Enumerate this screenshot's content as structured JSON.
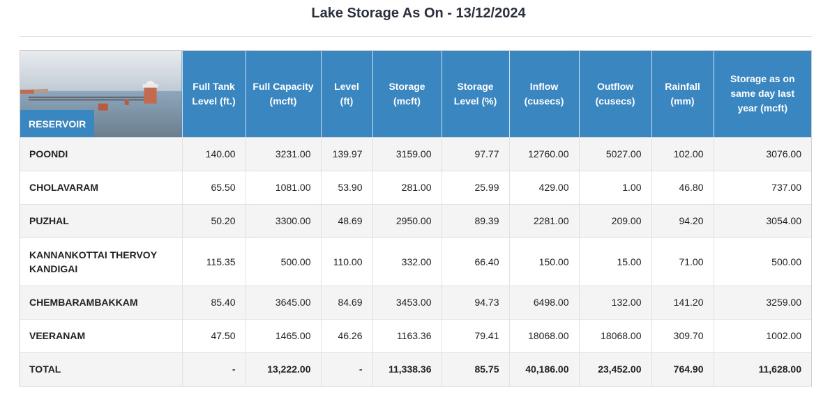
{
  "title": "Lake Storage As On - 13/12/2024",
  "columns": {
    "reservoir": "RESERVOIR",
    "full_tank_level": "Full Tank Level (ft.)",
    "full_capacity": "Full Capacity (mcft)",
    "level": "Level (ft)",
    "storage": "Storage (mcft)",
    "storage_level": "Storage Level (%)",
    "inflow": "Inflow (cusecs)",
    "outflow": "Outflow (cusecs)",
    "rainfall": "Rainfall (mm)",
    "storage_last_year": "Storage as on same day last year (mcft)"
  },
  "rows": [
    {
      "name": "POONDI",
      "ftl": "140.00",
      "capacity": "3231.00",
      "level": "139.97",
      "storage": "3159.00",
      "pct": "97.77",
      "inflow": "12760.00",
      "outflow": "5027.00",
      "rain": "102.00",
      "last": "3076.00"
    },
    {
      "name": "CHOLAVARAM",
      "ftl": "65.50",
      "capacity": "1081.00",
      "level": "53.90",
      "storage": "281.00",
      "pct": "25.99",
      "inflow": "429.00",
      "outflow": "1.00",
      "rain": "46.80",
      "last": "737.00"
    },
    {
      "name": "PUZHAL",
      "ftl": "50.20",
      "capacity": "3300.00",
      "level": "48.69",
      "storage": "2950.00",
      "pct": "89.39",
      "inflow": "2281.00",
      "outflow": "209.00",
      "rain": "94.20",
      "last": "3054.00"
    },
    {
      "name": "KANNANKOTTAI THERVOY KANDIGAI",
      "ftl": "115.35",
      "capacity": "500.00",
      "level": "110.00",
      "storage": "332.00",
      "pct": "66.40",
      "inflow": "150.00",
      "outflow": "15.00",
      "rain": "71.00",
      "last": "500.00"
    },
    {
      "name": "CHEMBARAMBAKKAM",
      "ftl": "85.40",
      "capacity": "3645.00",
      "level": "84.69",
      "storage": "3453.00",
      "pct": "94.73",
      "inflow": "6498.00",
      "outflow": "132.00",
      "rain": "141.20",
      "last": "3259.00"
    },
    {
      "name": "VEERANAM",
      "ftl": "47.50",
      "capacity": "1465.00",
      "level": "46.26",
      "storage": "1163.36",
      "pct": "79.41",
      "inflow": "18068.00",
      "outflow": "18068.00",
      "rain": "309.70",
      "last": "1002.00"
    }
  ],
  "total": {
    "name": "TOTAL",
    "ftl": "-",
    "capacity": "13,222.00",
    "level": "-",
    "storage": "11,338.36",
    "pct": "85.75",
    "inflow": "40,186.00",
    "outflow": "23,452.00",
    "rain": "764.90",
    "last": "11,628.00"
  },
  "header_image": "reservoir-photo"
}
